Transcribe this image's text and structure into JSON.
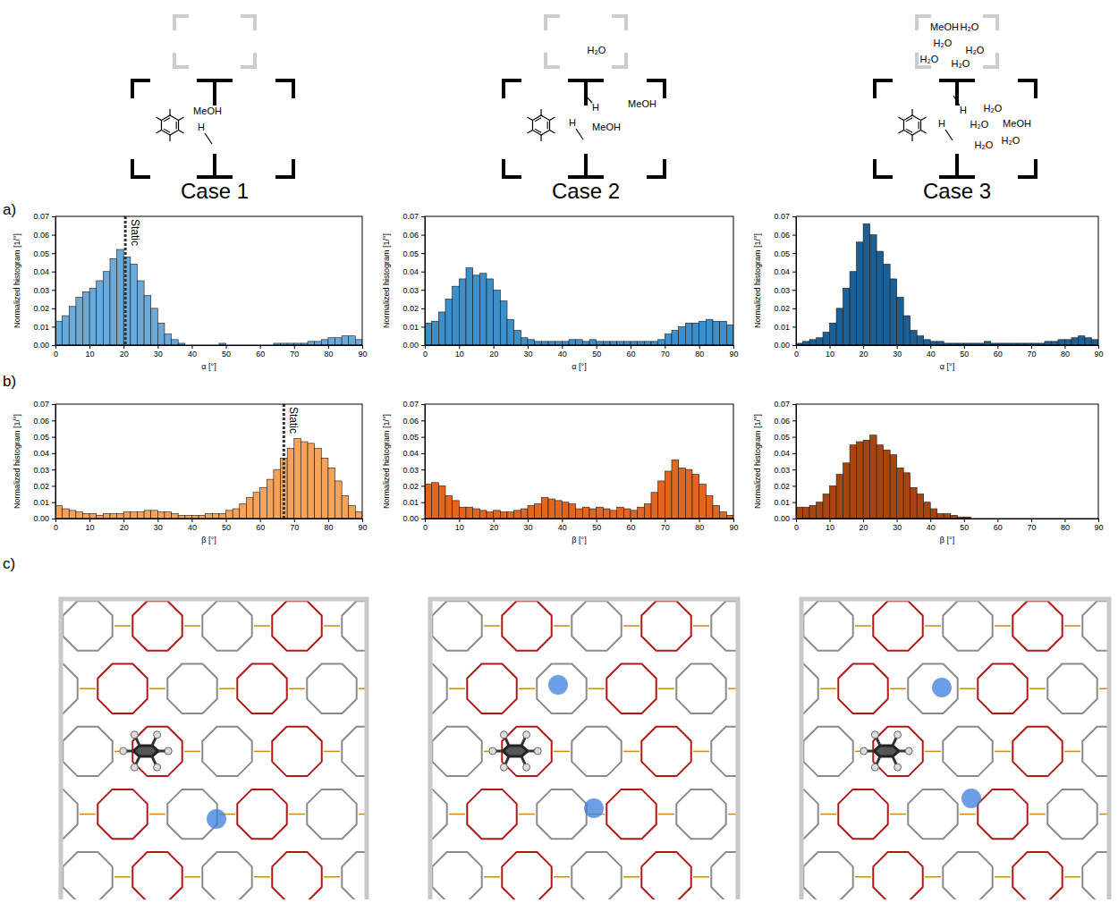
{
  "panel_labels": [
    "a)",
    "b)",
    "c)"
  ],
  "cases": [
    {
      "title": "Case 1",
      "labels": [
        "MeOH",
        "H"
      ]
    },
    {
      "title": "Case 2",
      "labels": [
        "H₂O",
        "H",
        "MeOH",
        "H",
        "MeOH"
      ]
    },
    {
      "title": "Case 3",
      "labels": [
        "MeOH",
        "H₂O",
        "H₂O",
        "H₂O",
        "H₂O",
        "H₂O",
        "H",
        "H₂O",
        "H",
        "H₂O",
        "MeOH",
        "H₂O",
        "H₂O"
      ]
    }
  ],
  "chart_data": [
    {
      "type": "histogram",
      "xlabel": "α [°]",
      "ylabel": "Normalized histogram [1/°]",
      "color": "#6aa9d8",
      "bins": [
        0,
        2,
        4,
        6,
        8,
        10,
        12,
        14,
        16,
        18,
        20,
        22,
        24,
        26,
        28,
        30,
        32,
        34,
        36,
        38,
        40,
        42,
        44,
        46,
        48,
        50,
        52,
        54,
        56,
        58,
        60,
        62,
        64,
        66,
        68,
        70,
        72,
        74,
        76,
        78,
        80,
        82,
        84,
        86,
        88,
        90
      ],
      "values": [
        0.013,
        0.016,
        0.021,
        0.026,
        0.029,
        0.031,
        0.035,
        0.04,
        0.047,
        0.052,
        0.048,
        0.044,
        0.035,
        0.027,
        0.02,
        0.012,
        0.006,
        0.003,
        0.001,
        0,
        0,
        0,
        0,
        0,
        0.001,
        0,
        0,
        0,
        0,
        0,
        0,
        0,
        0.001,
        0.001,
        0.001,
        0.001,
        0.001,
        0.002,
        0.002,
        0.003,
        0.004,
        0.004,
        0.005,
        0.005,
        0.003
      ],
      "xlim": [
        0,
        90
      ],
      "xticks": [
        0,
        10,
        20,
        30,
        40,
        50,
        60,
        70,
        80,
        90
      ],
      "ylim": [
        0,
        0.07
      ],
      "yticks": [
        {
          "value": 0,
          "label": "0.00"
        },
        {
          "value": 0.01,
          "label": "0.01"
        },
        {
          "value": 0.02,
          "label": "0.02"
        },
        {
          "value": 0.03,
          "label": "0.03"
        },
        {
          "value": 0.04,
          "label": "0.04"
        },
        {
          "value": 0.05,
          "label": "0.05"
        },
        {
          "value": 0.06,
          "label": "0.06"
        },
        {
          "value": 0.07,
          "label": "0.07"
        }
      ],
      "annotations": [
        {
          "text": "Static",
          "x": 20.5
        }
      ]
    },
    {
      "type": "histogram",
      "xlabel": "α [°]",
      "ylabel": "Normalized histogram [1/°]",
      "color": "#3d8fc9",
      "bins": [
        0,
        2,
        4,
        6,
        8,
        10,
        12,
        14,
        16,
        18,
        20,
        22,
        24,
        26,
        28,
        30,
        32,
        34,
        36,
        38,
        40,
        42,
        44,
        46,
        48,
        50,
        52,
        54,
        56,
        58,
        60,
        62,
        64,
        66,
        68,
        70,
        72,
        74,
        76,
        78,
        80,
        82,
        84,
        86,
        88,
        90
      ],
      "values": [
        0.012,
        0.013,
        0.018,
        0.025,
        0.032,
        0.036,
        0.042,
        0.038,
        0.039,
        0.036,
        0.03,
        0.024,
        0.014,
        0.008,
        0.004,
        0.003,
        0.002,
        0.002,
        0.002,
        0.002,
        0.002,
        0.003,
        0.003,
        0.002,
        0.003,
        0.002,
        0.002,
        0.002,
        0.002,
        0.002,
        0.002,
        0.002,
        0.002,
        0.002,
        0.003,
        0.006,
        0.008,
        0.01,
        0.012,
        0.012,
        0.013,
        0.014,
        0.013,
        0.013,
        0.011
      ],
      "xlim": [
        0,
        90
      ],
      "xticks": [
        0,
        10,
        20,
        30,
        40,
        50,
        60,
        70,
        80,
        90
      ],
      "ylim": [
        0,
        0.07
      ],
      "yticks": [
        {
          "value": 0,
          "label": "0.00"
        },
        {
          "value": 0.01,
          "label": "0.01"
        },
        {
          "value": 0.02,
          "label": "0.02"
        },
        {
          "value": 0.03,
          "label": "0.03"
        },
        {
          "value": 0.04,
          "label": "0.04"
        },
        {
          "value": 0.05,
          "label": "0.05"
        },
        {
          "value": 0.06,
          "label": "0.06"
        },
        {
          "value": 0.07,
          "label": "0.07"
        }
      ]
    },
    {
      "type": "histogram",
      "xlabel": "α [°]",
      "ylabel": "Normalized histogram [1/°]",
      "color": "#1c5f94",
      "bins": [
        0,
        2,
        4,
        6,
        8,
        10,
        12,
        14,
        16,
        18,
        20,
        22,
        24,
        26,
        28,
        30,
        32,
        34,
        36,
        38,
        40,
        42,
        44,
        46,
        48,
        50,
        52,
        54,
        56,
        58,
        60,
        62,
        64,
        66,
        68,
        70,
        72,
        74,
        76,
        78,
        80,
        82,
        84,
        86,
        88,
        90
      ],
      "values": [
        0.001,
        0.002,
        0.003,
        0.004,
        0.007,
        0.012,
        0.02,
        0.031,
        0.04,
        0.056,
        0.066,
        0.06,
        0.051,
        0.044,
        0.036,
        0.026,
        0.016,
        0.008,
        0.005,
        0.003,
        0.002,
        0.002,
        0.001,
        0.001,
        0.001,
        0.001,
        0.001,
        0.001,
        0.002,
        0.001,
        0.001,
        0.001,
        0.001,
        0.001,
        0.001,
        0.001,
        0.001,
        0.002,
        0.002,
        0.003,
        0.003,
        0.004,
        0.005,
        0.004,
        0.003
      ],
      "xlim": [
        0,
        90
      ],
      "xticks": [
        0,
        10,
        20,
        30,
        40,
        50,
        60,
        70,
        80,
        90
      ],
      "ylim": [
        0,
        0.07
      ],
      "yticks": [
        {
          "value": 0,
          "label": "0.00"
        },
        {
          "value": 0.01,
          "label": "0.01"
        },
        {
          "value": 0.02,
          "label": "0.02"
        },
        {
          "value": 0.03,
          "label": "0.03"
        },
        {
          "value": 0.04,
          "label": "0.04"
        },
        {
          "value": 0.05,
          "label": "0.05"
        },
        {
          "value": 0.06,
          "label": "0.06"
        },
        {
          "value": 0.07,
          "label": "0.07"
        }
      ]
    },
    {
      "type": "histogram",
      "xlabel": "β [°]",
      "ylabel": "Normalized histogram [1/°]",
      "color": "#f5a35a",
      "bins": [
        0,
        2,
        4,
        6,
        8,
        10,
        12,
        14,
        16,
        18,
        20,
        22,
        24,
        26,
        28,
        30,
        32,
        34,
        36,
        38,
        40,
        42,
        44,
        46,
        48,
        50,
        52,
        54,
        56,
        58,
        60,
        62,
        64,
        66,
        68,
        70,
        72,
        74,
        76,
        78,
        80,
        82,
        84,
        86,
        88,
        90
      ],
      "values": [
        0.008,
        0.006,
        0.005,
        0.004,
        0.003,
        0.003,
        0.002,
        0.003,
        0.003,
        0.003,
        0.004,
        0.004,
        0.004,
        0.005,
        0.005,
        0.004,
        0.004,
        0.003,
        0.002,
        0.002,
        0.002,
        0.002,
        0.003,
        0.003,
        0.003,
        0.005,
        0.006,
        0.009,
        0.013,
        0.016,
        0.019,
        0.024,
        0.03,
        0.037,
        0.043,
        0.049,
        0.047,
        0.046,
        0.043,
        0.037,
        0.031,
        0.023,
        0.014,
        0.008,
        0.004
      ],
      "xlim": [
        0,
        90
      ],
      "xticks": [
        0,
        10,
        20,
        30,
        40,
        50,
        60,
        70,
        80,
        90
      ],
      "ylim": [
        0,
        0.07
      ],
      "yticks": [
        {
          "value": 0,
          "label": "0.00"
        },
        {
          "value": 0.01,
          "label": "0.01"
        },
        {
          "value": 0.02,
          "label": "0.02"
        },
        {
          "value": 0.03,
          "label": "0.03"
        },
        {
          "value": 0.04,
          "label": "0.04"
        },
        {
          "value": 0.05,
          "label": "0.05"
        },
        {
          "value": 0.06,
          "label": "0.06"
        },
        {
          "value": 0.07,
          "label": "0.07"
        }
      ],
      "annotations": [
        {
          "text": "Static",
          "x": 67
        }
      ]
    },
    {
      "type": "histogram",
      "xlabel": "β [°]",
      "ylabel": "Normalized histogram [1/°]",
      "color": "#e2661f",
      "bins": [
        0,
        2,
        4,
        6,
        8,
        10,
        12,
        14,
        16,
        18,
        20,
        22,
        24,
        26,
        28,
        30,
        32,
        34,
        36,
        38,
        40,
        42,
        44,
        46,
        48,
        50,
        52,
        54,
        56,
        58,
        60,
        62,
        64,
        66,
        68,
        70,
        72,
        74,
        76,
        78,
        80,
        82,
        84,
        86,
        88,
        90
      ],
      "values": [
        0.021,
        0.022,
        0.02,
        0.014,
        0.011,
        0.007,
        0.007,
        0.006,
        0.005,
        0.004,
        0.005,
        0.004,
        0.004,
        0.005,
        0.006,
        0.008,
        0.009,
        0.013,
        0.012,
        0.011,
        0.01,
        0.009,
        0.006,
        0.007,
        0.006,
        0.007,
        0.006,
        0.005,
        0.007,
        0.006,
        0.005,
        0.007,
        0.009,
        0.016,
        0.023,
        0.029,
        0.036,
        0.031,
        0.03,
        0.027,
        0.021,
        0.014,
        0.008,
        0.004,
        0.002
      ],
      "xlim": [
        0,
        90
      ],
      "xticks": [
        0,
        10,
        20,
        30,
        40,
        50,
        60,
        70,
        80,
        90
      ],
      "ylim": [
        0,
        0.07
      ],
      "yticks": [
        {
          "value": 0,
          "label": "0.00"
        },
        {
          "value": 0.01,
          "label": "0.01"
        },
        {
          "value": 0.02,
          "label": "0.02"
        },
        {
          "value": 0.03,
          "label": "0.03"
        },
        {
          "value": 0.04,
          "label": "0.04"
        },
        {
          "value": 0.05,
          "label": "0.05"
        },
        {
          "value": 0.06,
          "label": "0.06"
        },
        {
          "value": 0.07,
          "label": "0.07"
        }
      ]
    },
    {
      "type": "histogram",
      "xlabel": "β [°]",
      "ylabel": "Normalized histogram [1/°]",
      "color": "#a8440f",
      "bins": [
        0,
        2,
        4,
        6,
        8,
        10,
        12,
        14,
        16,
        18,
        20,
        22,
        24,
        26,
        28,
        30,
        32,
        34,
        36,
        38,
        40,
        42,
        44,
        46,
        48,
        50,
        52,
        54,
        56,
        58,
        60,
        62,
        64,
        66,
        68,
        70,
        72,
        74,
        76,
        78,
        80,
        82,
        84,
        86,
        88,
        90
      ],
      "values": [
        0.007,
        0.007,
        0.008,
        0.01,
        0.015,
        0.02,
        0.027,
        0.034,
        0.045,
        0.047,
        0.048,
        0.051,
        0.045,
        0.042,
        0.039,
        0.031,
        0.028,
        0.019,
        0.015,
        0.01,
        0.006,
        0.003,
        0.003,
        0.002,
        0.001,
        0.001,
        0,
        0,
        0,
        0,
        0,
        0,
        0,
        0,
        0,
        0,
        0,
        0,
        0,
        0,
        0,
        0,
        0,
        0,
        0
      ],
      "xlim": [
        0,
        90
      ],
      "xticks": [
        0,
        10,
        20,
        30,
        40,
        50,
        60,
        70,
        80,
        90
      ],
      "ylim": [
        0,
        0.07
      ],
      "yticks": [
        {
          "value": 0,
          "label": "0.00"
        },
        {
          "value": 0.01,
          "label": "0.01"
        },
        {
          "value": 0.02,
          "label": "0.02"
        },
        {
          "value": 0.03,
          "label": "0.03"
        },
        {
          "value": 0.04,
          "label": "0.04"
        },
        {
          "value": 0.05,
          "label": "0.05"
        },
        {
          "value": 0.06,
          "label": "0.06"
        },
        {
          "value": 0.07,
          "label": "0.07"
        }
      ]
    }
  ]
}
